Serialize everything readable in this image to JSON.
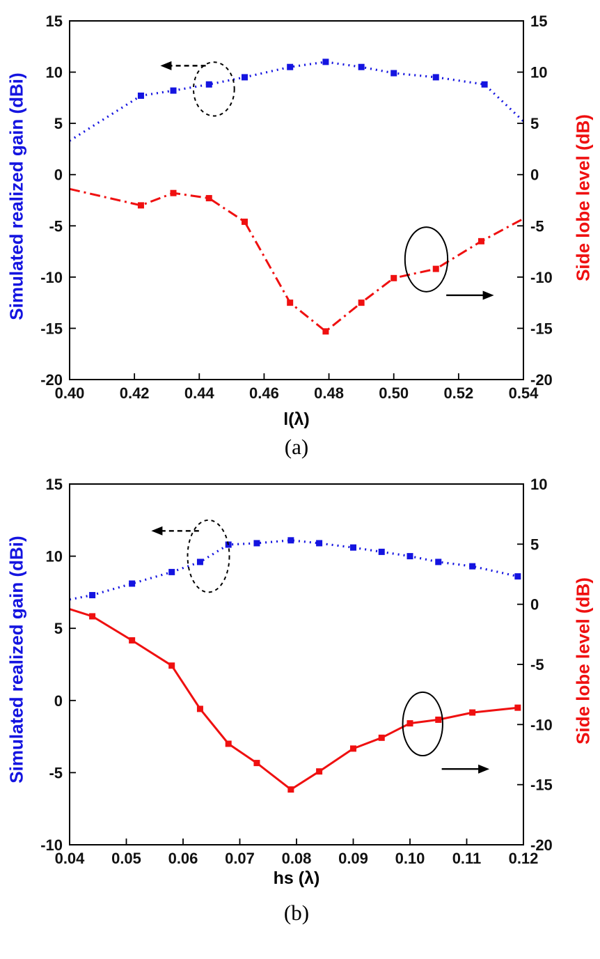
{
  "page": {
    "background": "#ffffff"
  },
  "colors": {
    "gain_blue": "#1414e0",
    "sll_red": "#ef1010",
    "axis_black": "#000000"
  },
  "chart_data": [
    {
      "id": "a",
      "type": "line",
      "caption": "(a)",
      "xlabel": "l(λ)",
      "ylabel_left": "Simulated realized gain (dBi)",
      "ylabel_right": "Side lobe level (dB)",
      "x_range": [
        0.4,
        0.54
      ],
      "left_range": [
        -20,
        15
      ],
      "right_range": [
        -20,
        15
      ],
      "grid": false,
      "legend": "none",
      "x_ticks": {
        "values": [
          0.4,
          0.42,
          0.44,
          0.46,
          0.48,
          0.5,
          0.52,
          0.54
        ],
        "labels": [
          "0.40",
          "0.42",
          "0.44",
          "0.46",
          "0.48",
          "0.50",
          "0.52",
          "0.54"
        ]
      },
      "left_ticks": {
        "values": [
          15,
          10,
          5,
          0,
          -5,
          -10,
          -15,
          -20
        ],
        "labels": [
          "15",
          "10",
          "5",
          "0",
          "-5",
          "-10",
          "-15",
          "-20"
        ]
      },
      "right_ticks": {
        "values": [
          15,
          10,
          5,
          0,
          -5,
          -10,
          -15,
          -20
        ],
        "labels": [
          "15",
          "10",
          "5",
          "0",
          "-5",
          "-10",
          "-15",
          "-20"
        ]
      },
      "series": [
        {
          "name": "Simulated realized gain",
          "axis": "left",
          "color": "#1414e0",
          "style": "dotted",
          "width": 3.2,
          "marker": "square",
          "marker_size": 9,
          "edge_start": true,
          "edge_end": true,
          "points": [
            [
              0.4,
              3.3
            ],
            [
              0.422,
              7.7
            ],
            [
              0.432,
              8.2
            ],
            [
              0.443,
              8.8
            ],
            [
              0.454,
              9.5
            ],
            [
              0.468,
              10.5
            ],
            [
              0.479,
              11.0
            ],
            [
              0.49,
              10.5
            ],
            [
              0.5,
              9.9
            ],
            [
              0.513,
              9.5
            ],
            [
              0.528,
              8.8
            ],
            [
              0.54,
              5.2
            ]
          ]
        },
        {
          "name": "Side lobe level",
          "axis": "right",
          "color": "#ef1010",
          "style": "dashdot",
          "width": 3,
          "marker": "square",
          "marker_size": 9,
          "edge_start": true,
          "edge_end": true,
          "points": [
            [
              0.4,
              -1.4
            ],
            [
              0.422,
              -3.0
            ],
            [
              0.432,
              -1.8
            ],
            [
              0.443,
              -2.3
            ],
            [
              0.454,
              -4.6
            ],
            [
              0.468,
              -12.5
            ],
            [
              0.479,
              -15.3
            ],
            [
              0.49,
              -12.5
            ],
            [
              0.5,
              -10.1
            ],
            [
              0.513,
              -9.2
            ],
            [
              0.527,
              -6.5
            ],
            [
              0.54,
              -4.3
            ]
          ]
        }
      ],
      "annotations": [
        {
          "shape": "ellipse",
          "style": "dashed",
          "fx": 0.318,
          "fy": 0.19,
          "frx": 0.045,
          "fry": 0.075,
          "meaning": "points to gain curve"
        },
        {
          "shape": "arrow",
          "style": "dashed",
          "fx1": 0.3,
          "fy1": 0.125,
          "fx2": 0.2,
          "fy2": 0.125,
          "meaning": "gain reads left axis"
        },
        {
          "shape": "ellipse",
          "style": "solid",
          "fx": 0.786,
          "fy": 0.665,
          "frx": 0.047,
          "fry": 0.09,
          "meaning": "points to SLL curve"
        },
        {
          "shape": "arrow",
          "style": "solid",
          "fx1": 0.83,
          "fy1": 0.765,
          "fx2": 0.935,
          "fy2": 0.765,
          "meaning": "SLL reads right axis"
        }
      ]
    },
    {
      "id": "b",
      "type": "line",
      "caption": "(b)",
      "xlabel": "hs (λ)",
      "ylabel_left": "Simulated realized gain (dBi)",
      "ylabel_right": "Side lobe level (dB)",
      "x_range": [
        0.04,
        0.12
      ],
      "left_range": [
        -10,
        15
      ],
      "right_range": [
        -20,
        10
      ],
      "grid": false,
      "legend": "none",
      "x_ticks": {
        "values": [
          0.04,
          0.05,
          0.06,
          0.07,
          0.08,
          0.09,
          0.1,
          0.11,
          0.12
        ],
        "labels": [
          "0.04",
          "0.05",
          "0.06",
          "0.07",
          "0.08",
          "0.09",
          "0.10",
          "0.11",
          "0.12"
        ]
      },
      "left_ticks": {
        "values": [
          15,
          10,
          5,
          0,
          -5,
          -10
        ],
        "labels": [
          "15",
          "10",
          "5",
          "0",
          "-5",
          "-10"
        ]
      },
      "right_ticks": {
        "values": [
          10,
          5,
          0,
          -5,
          -10,
          -15,
          -20
        ],
        "labels": [
          "10",
          "5",
          "0",
          "-5",
          "-10",
          "-15",
          "-20"
        ]
      },
      "series": [
        {
          "name": "Simulated realized gain",
          "axis": "left",
          "color": "#1414e0",
          "style": "dotted",
          "width": 3.2,
          "marker": "square",
          "marker_size": 9,
          "edge_start": true,
          "edge_end": false,
          "points": [
            [
              0.04,
              7.0
            ],
            [
              0.044,
              7.3
            ],
            [
              0.051,
              8.1
            ],
            [
              0.058,
              8.9
            ],
            [
              0.063,
              9.6
            ],
            [
              0.068,
              10.8
            ],
            [
              0.073,
              10.9
            ],
            [
              0.079,
              11.1
            ],
            [
              0.084,
              10.9
            ],
            [
              0.09,
              10.6
            ],
            [
              0.095,
              10.3
            ],
            [
              0.1,
              10.0
            ],
            [
              0.105,
              9.6
            ],
            [
              0.111,
              9.3
            ],
            [
              0.119,
              8.6
            ]
          ]
        },
        {
          "name": "Side lobe level",
          "axis": "right",
          "color": "#ef1010",
          "style": "solid",
          "width": 3,
          "marker": "square",
          "marker_size": 9,
          "edge_start": true,
          "edge_end": false,
          "points": [
            [
              0.04,
              -0.4
            ],
            [
              0.044,
              -1.0
            ],
            [
              0.051,
              -3.0
            ],
            [
              0.058,
              -5.1
            ],
            [
              0.063,
              -8.7
            ],
            [
              0.068,
              -11.6
            ],
            [
              0.073,
              -13.2
            ],
            [
              0.079,
              -15.4
            ],
            [
              0.084,
              -13.9
            ],
            [
              0.09,
              -12.0
            ],
            [
              0.095,
              -11.1
            ],
            [
              0.1,
              -9.9
            ],
            [
              0.105,
              -9.6
            ],
            [
              0.111,
              -9.0
            ],
            [
              0.119,
              -8.6
            ]
          ]
        }
      ],
      "annotations": [
        {
          "shape": "ellipse",
          "style": "dashed",
          "fx": 0.306,
          "fy": 0.2,
          "frx": 0.046,
          "fry": 0.1,
          "meaning": "points to gain curve"
        },
        {
          "shape": "arrow",
          "style": "dashed",
          "fx1": 0.285,
          "fy1": 0.13,
          "fx2": 0.18,
          "fy2": 0.13,
          "meaning": "gain reads left axis"
        },
        {
          "shape": "ellipse",
          "style": "solid",
          "fx": 0.778,
          "fy": 0.665,
          "frx": 0.044,
          "fry": 0.088,
          "meaning": "points to SLL curve"
        },
        {
          "shape": "arrow",
          "style": "solid",
          "fx1": 0.82,
          "fy1": 0.79,
          "fx2": 0.925,
          "fy2": 0.79,
          "meaning": "SLL reads right axis"
        }
      ]
    }
  ]
}
